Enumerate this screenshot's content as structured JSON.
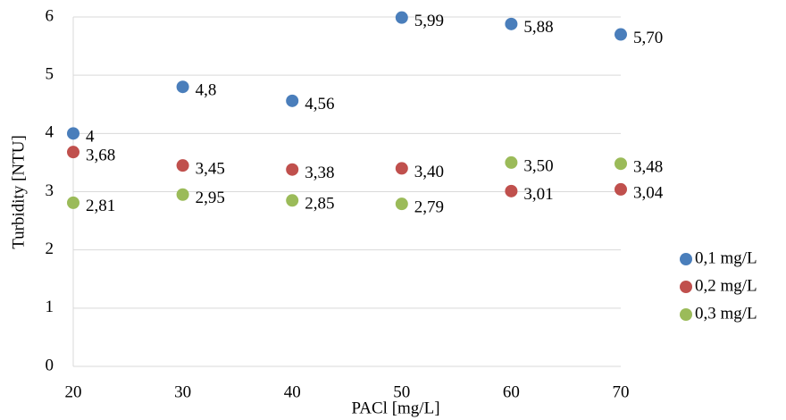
{
  "chart_data": {
    "type": "scatter",
    "x_label": "PACl [mg/L]",
    "y_label": "Turbidity [NTU]",
    "x": [
      20,
      30,
      40,
      50,
      60,
      70
    ],
    "series": [
      {
        "name": "0,1 mg/L",
        "color": "#4a7ebb",
        "values": [
          4,
          4.8,
          4.56,
          5.99,
          5.88,
          5.7
        ],
        "value_labels": [
          "4",
          "4,8",
          "4,56",
          "5,99",
          "5,88",
          "5,70"
        ]
      },
      {
        "name": "0,2 mg/L",
        "color": "#c0504d",
        "values": [
          3.68,
          3.45,
          3.38,
          3.4,
          3.01,
          3.04
        ],
        "value_labels": [
          "3,68",
          "3,45",
          "3,38",
          "3,40",
          "3,01",
          "3,04"
        ]
      },
      {
        "name": "0,3 mg/L",
        "color": "#9bbb59",
        "values": [
          2.81,
          2.95,
          2.85,
          2.79,
          3.5,
          3.48
        ],
        "value_labels": [
          "2,81",
          "2,95",
          "2,85",
          "2,79",
          "3,50",
          "3,48"
        ]
      }
    ],
    "xlim": [
      20,
      70
    ],
    "xticks": [
      20,
      30,
      40,
      50,
      60,
      70
    ],
    "ylim": [
      0,
      6
    ],
    "yticks": [
      0,
      1,
      2,
      3,
      4,
      5,
      6
    ],
    "grid": true,
    "legend": "right"
  }
}
